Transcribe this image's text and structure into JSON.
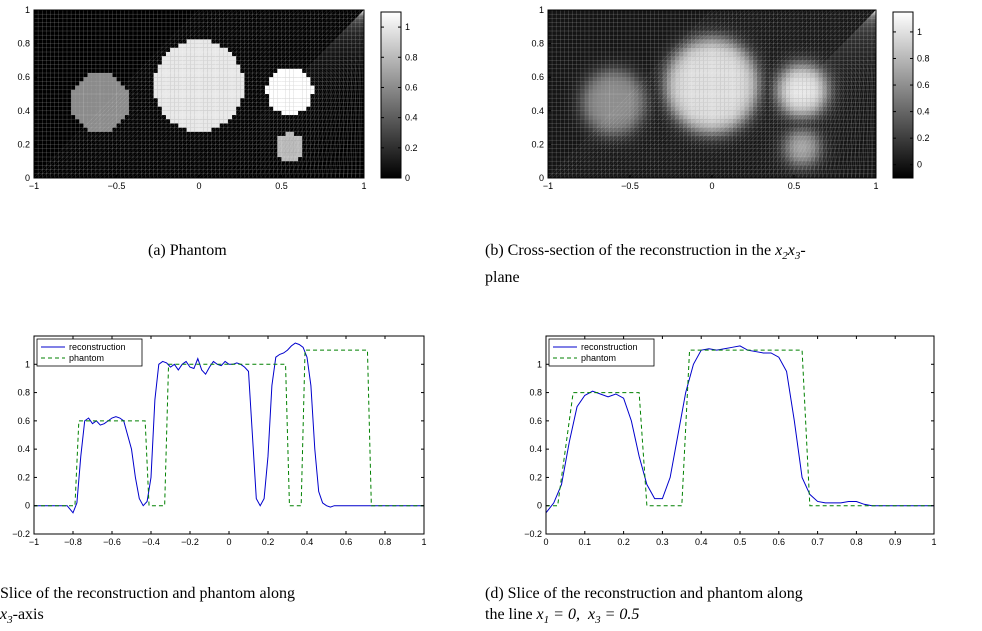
{
  "captions": {
    "a": "(a)  Phantom",
    "b_line1_pre": "(b)  Cross-section of the reconstruction in the ",
    "b_math": "x2x3",
    "b_line1_post": "-",
    "b_line2": "plane",
    "c_line1": "Slice of the reconstruction and phantom along",
    "c_line2_math": "x3",
    "c_line2_post": "-axis",
    "d_line1": "(d)  Slice of the reconstruction and phantom along",
    "d_line2_pre": "the line ",
    "d_line2_math1": "x1 = 0,",
    "d_line2_math2": "x3 = 0.5"
  },
  "chart_data": [
    {
      "id": "a",
      "type": "heatmap",
      "title": "",
      "colormap": "gray",
      "xlim": [
        -1,
        1
      ],
      "ylim": [
        0,
        1
      ],
      "xticks": [
        "-1",
        "-0.5",
        "0",
        "0.5",
        "1"
      ],
      "yticks": [
        "0",
        "0.2",
        "0.4",
        "0.6",
        "0.8",
        "1"
      ],
      "colorbar_range": [
        0,
        1.1
      ],
      "colorbar_ticks": [
        "0",
        "0.2",
        "0.4",
        "0.6",
        "0.8",
        "1"
      ],
      "disks": [
        {
          "cx": -0.6,
          "cy": 0.45,
          "r": 0.175,
          "value": 0.6
        },
        {
          "cx": 0.0,
          "cy": 0.55,
          "r": 0.27,
          "value": 1.0
        },
        {
          "cx": 0.55,
          "cy": 0.52,
          "r": 0.14,
          "value": 1.1
        },
        {
          "cx": 0.55,
          "cy": 0.18,
          "r": 0.085,
          "value": 0.8
        }
      ]
    },
    {
      "id": "b",
      "type": "heatmap",
      "title": "",
      "colormap": "gray",
      "xlim": [
        -1,
        1
      ],
      "ylim": [
        0,
        1
      ],
      "xticks": [
        "-1",
        "-0.5",
        "0",
        "0.5",
        "1"
      ],
      "yticks": [
        "0",
        "0.2",
        "0.4",
        "0.6",
        "0.8",
        "1"
      ],
      "colorbar_range": [
        -0.1,
        1.15
      ],
      "colorbar_ticks": [
        "0",
        "0.2",
        "0.4",
        "0.6",
        "0.8",
        "1"
      ],
      "disks": [
        {
          "cx": -0.6,
          "cy": 0.45,
          "r": 0.19,
          "value": 0.6
        },
        {
          "cx": 0.0,
          "cy": 0.55,
          "r": 0.28,
          "value": 1.0
        },
        {
          "cx": 0.55,
          "cy": 0.52,
          "r": 0.15,
          "value": 1.05
        },
        {
          "cx": 0.55,
          "cy": 0.18,
          "r": 0.1,
          "value": 0.75
        }
      ]
    },
    {
      "id": "c",
      "type": "line",
      "title": "",
      "xlim": [
        -1,
        1
      ],
      "ylim": [
        -0.2,
        1.2
      ],
      "xticks": [
        "-1",
        "-0.8",
        "-0.6",
        "-0.4",
        "-0.2",
        "0",
        "0.2",
        "0.4",
        "0.6",
        "0.8",
        "1"
      ],
      "yticks": [
        "-0.2",
        "0",
        "0.2",
        "0.4",
        "0.6",
        "0.8",
        "1"
      ],
      "legend_position": "top-left",
      "series": [
        {
          "name": "reconstruction",
          "style": "solid",
          "color": "#0000cc",
          "x": [
            -1,
            -0.9,
            -0.83,
            -0.8,
            -0.78,
            -0.76,
            -0.74,
            -0.72,
            -0.7,
            -0.68,
            -0.66,
            -0.64,
            -0.62,
            -0.6,
            -0.58,
            -0.56,
            -0.54,
            -0.52,
            -0.5,
            -0.48,
            -0.46,
            -0.44,
            -0.42,
            -0.4,
            -0.38,
            -0.36,
            -0.34,
            -0.32,
            -0.3,
            -0.28,
            -0.26,
            -0.24,
            -0.22,
            -0.2,
            -0.18,
            -0.16,
            -0.14,
            -0.12,
            -0.1,
            -0.08,
            -0.06,
            -0.04,
            -0.02,
            0,
            0.02,
            0.04,
            0.06,
            0.08,
            0.1,
            0.12,
            0.14,
            0.16,
            0.18,
            0.2,
            0.22,
            0.24,
            0.26,
            0.28,
            0.3,
            0.32,
            0.34,
            0.36,
            0.38,
            0.4,
            0.42,
            0.44,
            0.46,
            0.48,
            0.5,
            0.52,
            0.54,
            0.56,
            0.58,
            0.6,
            0.62,
            0.64,
            0.66,
            0.68,
            0.7,
            0.72,
            0.74,
            0.76,
            0.8,
            0.9,
            1
          ],
          "y": [
            0,
            0,
            0,
            -0.05,
            0.02,
            0.35,
            0.6,
            0.62,
            0.58,
            0.6,
            0.57,
            0.58,
            0.6,
            0.62,
            0.63,
            0.62,
            0.6,
            0.5,
            0.4,
            0.2,
            0.05,
            0,
            0.03,
            0.2,
            0.75,
            1.0,
            1.02,
            1.01,
            0.98,
            1.0,
            0.96,
            1.0,
            1.02,
            0.98,
            0.97,
            1.04,
            0.96,
            0.93,
            0.98,
            1.02,
            1.0,
            0.99,
            1.02,
            1.0,
            1.0,
            1.01,
            1.0,
            0.98,
            0.95,
            0.5,
            0.05,
            0.0,
            0.05,
            0.35,
            0.85,
            1.05,
            1.07,
            1.08,
            1.1,
            1.13,
            1.15,
            1.14,
            1.12,
            1.05,
            0.85,
            0.4,
            0.1,
            0.02,
            0,
            -0.01,
            0,
            0,
            0,
            0,
            0,
            0,
            0,
            0,
            0,
            0,
            0,
            0,
            0,
            0,
            0
          ],
          "note": ""
        },
        {
          "name": "phantom",
          "style": "dashed",
          "color": "#008000",
          "x": [
            -1,
            -0.79,
            -0.77,
            -0.43,
            -0.41,
            -0.33,
            -0.31,
            0.29,
            0.31,
            0.37,
            0.39,
            0.71,
            0.73,
            1
          ],
          "y": [
            0,
            0,
            0.6,
            0.6,
            0,
            0,
            1.0,
            1.0,
            0,
            0,
            1.1,
            1.1,
            0,
            0
          ]
        }
      ]
    },
    {
      "id": "d",
      "type": "line",
      "title": "",
      "xlim": [
        0,
        1
      ],
      "ylim": [
        -0.2,
        1.2
      ],
      "xticks": [
        "0",
        "0.1",
        "0.2",
        "0.3",
        "0.4",
        "0.5",
        "0.6",
        "0.7",
        "0.8",
        "0.9",
        "1"
      ],
      "yticks": [
        "-0.2",
        "0",
        "0.2",
        "0.4",
        "0.6",
        "0.8",
        "1"
      ],
      "legend_position": "top-left",
      "series": [
        {
          "name": "reconstruction",
          "style": "solid",
          "color": "#0000cc",
          "x": [
            0,
            0.02,
            0.04,
            0.06,
            0.08,
            0.1,
            0.12,
            0.14,
            0.16,
            0.18,
            0.2,
            0.22,
            0.24,
            0.26,
            0.28,
            0.3,
            0.32,
            0.34,
            0.36,
            0.38,
            0.4,
            0.42,
            0.44,
            0.46,
            0.48,
            0.5,
            0.52,
            0.54,
            0.56,
            0.58,
            0.6,
            0.62,
            0.64,
            0.66,
            0.68,
            0.7,
            0.72,
            0.74,
            0.76,
            0.78,
            0.8,
            0.82,
            0.84,
            0.9,
            1
          ],
          "y": [
            -0.05,
            0.02,
            0.15,
            0.45,
            0.7,
            0.78,
            0.81,
            0.79,
            0.77,
            0.79,
            0.76,
            0.6,
            0.35,
            0.15,
            0.05,
            0.05,
            0.2,
            0.5,
            0.8,
            1.0,
            1.1,
            1.11,
            1.1,
            1.11,
            1.12,
            1.13,
            1.1,
            1.09,
            1.08,
            1.08,
            1.05,
            0.95,
            0.6,
            0.2,
            0.08,
            0.03,
            0.02,
            0.02,
            0.02,
            0.03,
            0.03,
            0.01,
            0,
            0,
            0
          ]
        },
        {
          "name": "phantom",
          "style": "dashed",
          "color": "#008000",
          "x": [
            0,
            0.03,
            0.07,
            0.24,
            0.26,
            0.35,
            0.37,
            0.66,
            0.68,
            1
          ],
          "y": [
            0,
            0,
            0.8,
            0.8,
            0,
            0,
            1.1,
            1.1,
            0,
            0
          ]
        }
      ]
    }
  ]
}
